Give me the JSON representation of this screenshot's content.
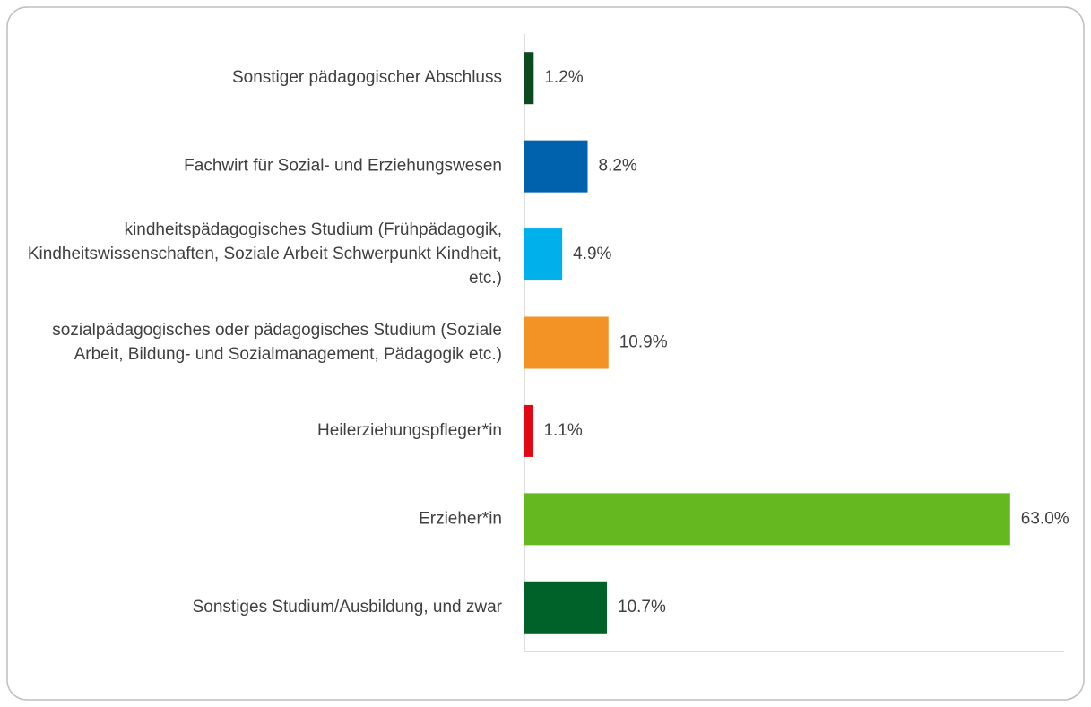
{
  "chart_data": {
    "type": "bar",
    "orientation": "horizontal",
    "categories": [
      "Sonstiger pädagogischer Abschluss",
      "Fachwirt für Sozial- und Erziehungswesen",
      "kindheitspädagogisches Studium (Frühpädagogik, Kindheitswissenschaften, Soziale Arbeit Schwerpunkt Kindheit, etc.)",
      "sozialpädagogisches oder pädagogisches Studium (Soziale Arbeit, Bildung- und Sozialmanagement, Pädagogik etc.)",
      "Heilerziehungspfleger*in",
      "Erzieher*in",
      "Sonstiges Studium/Ausbildung, und zwar"
    ],
    "values": [
      1.2,
      8.2,
      4.9,
      10.9,
      1.1,
      63.0,
      10.7
    ],
    "value_labels": [
      "1.2%",
      "8.2%",
      "4.9%",
      "10.9%",
      "1.1%",
      "63.0%",
      "10.7%"
    ],
    "colors": [
      "#0b4a1f",
      "#0061ad",
      "#00b0ea",
      "#f39325",
      "#e30613",
      "#66b821",
      "#006129"
    ],
    "xlim": [
      0,
      70
    ]
  }
}
